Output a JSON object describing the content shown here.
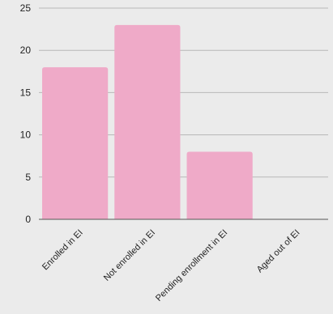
{
  "chart_data": {
    "type": "bar",
    "title": "",
    "xlabel": "",
    "ylabel": "",
    "categories": [
      "Enrolled in EI",
      "Not enrolled in EI",
      "Pending enrollment in EI",
      "Aged out of EI"
    ],
    "values": [
      18,
      23,
      8,
      0
    ],
    "ylim": [
      0,
      25
    ],
    "yticks": [
      "0",
      "5",
      "10",
      "15",
      "20",
      "25"
    ],
    "grid": true,
    "colors": {
      "bar": "#efaac8",
      "grid": "#b8b8b8",
      "baseline": "#555555",
      "text": "#222222",
      "background": "#ebebeb"
    }
  }
}
